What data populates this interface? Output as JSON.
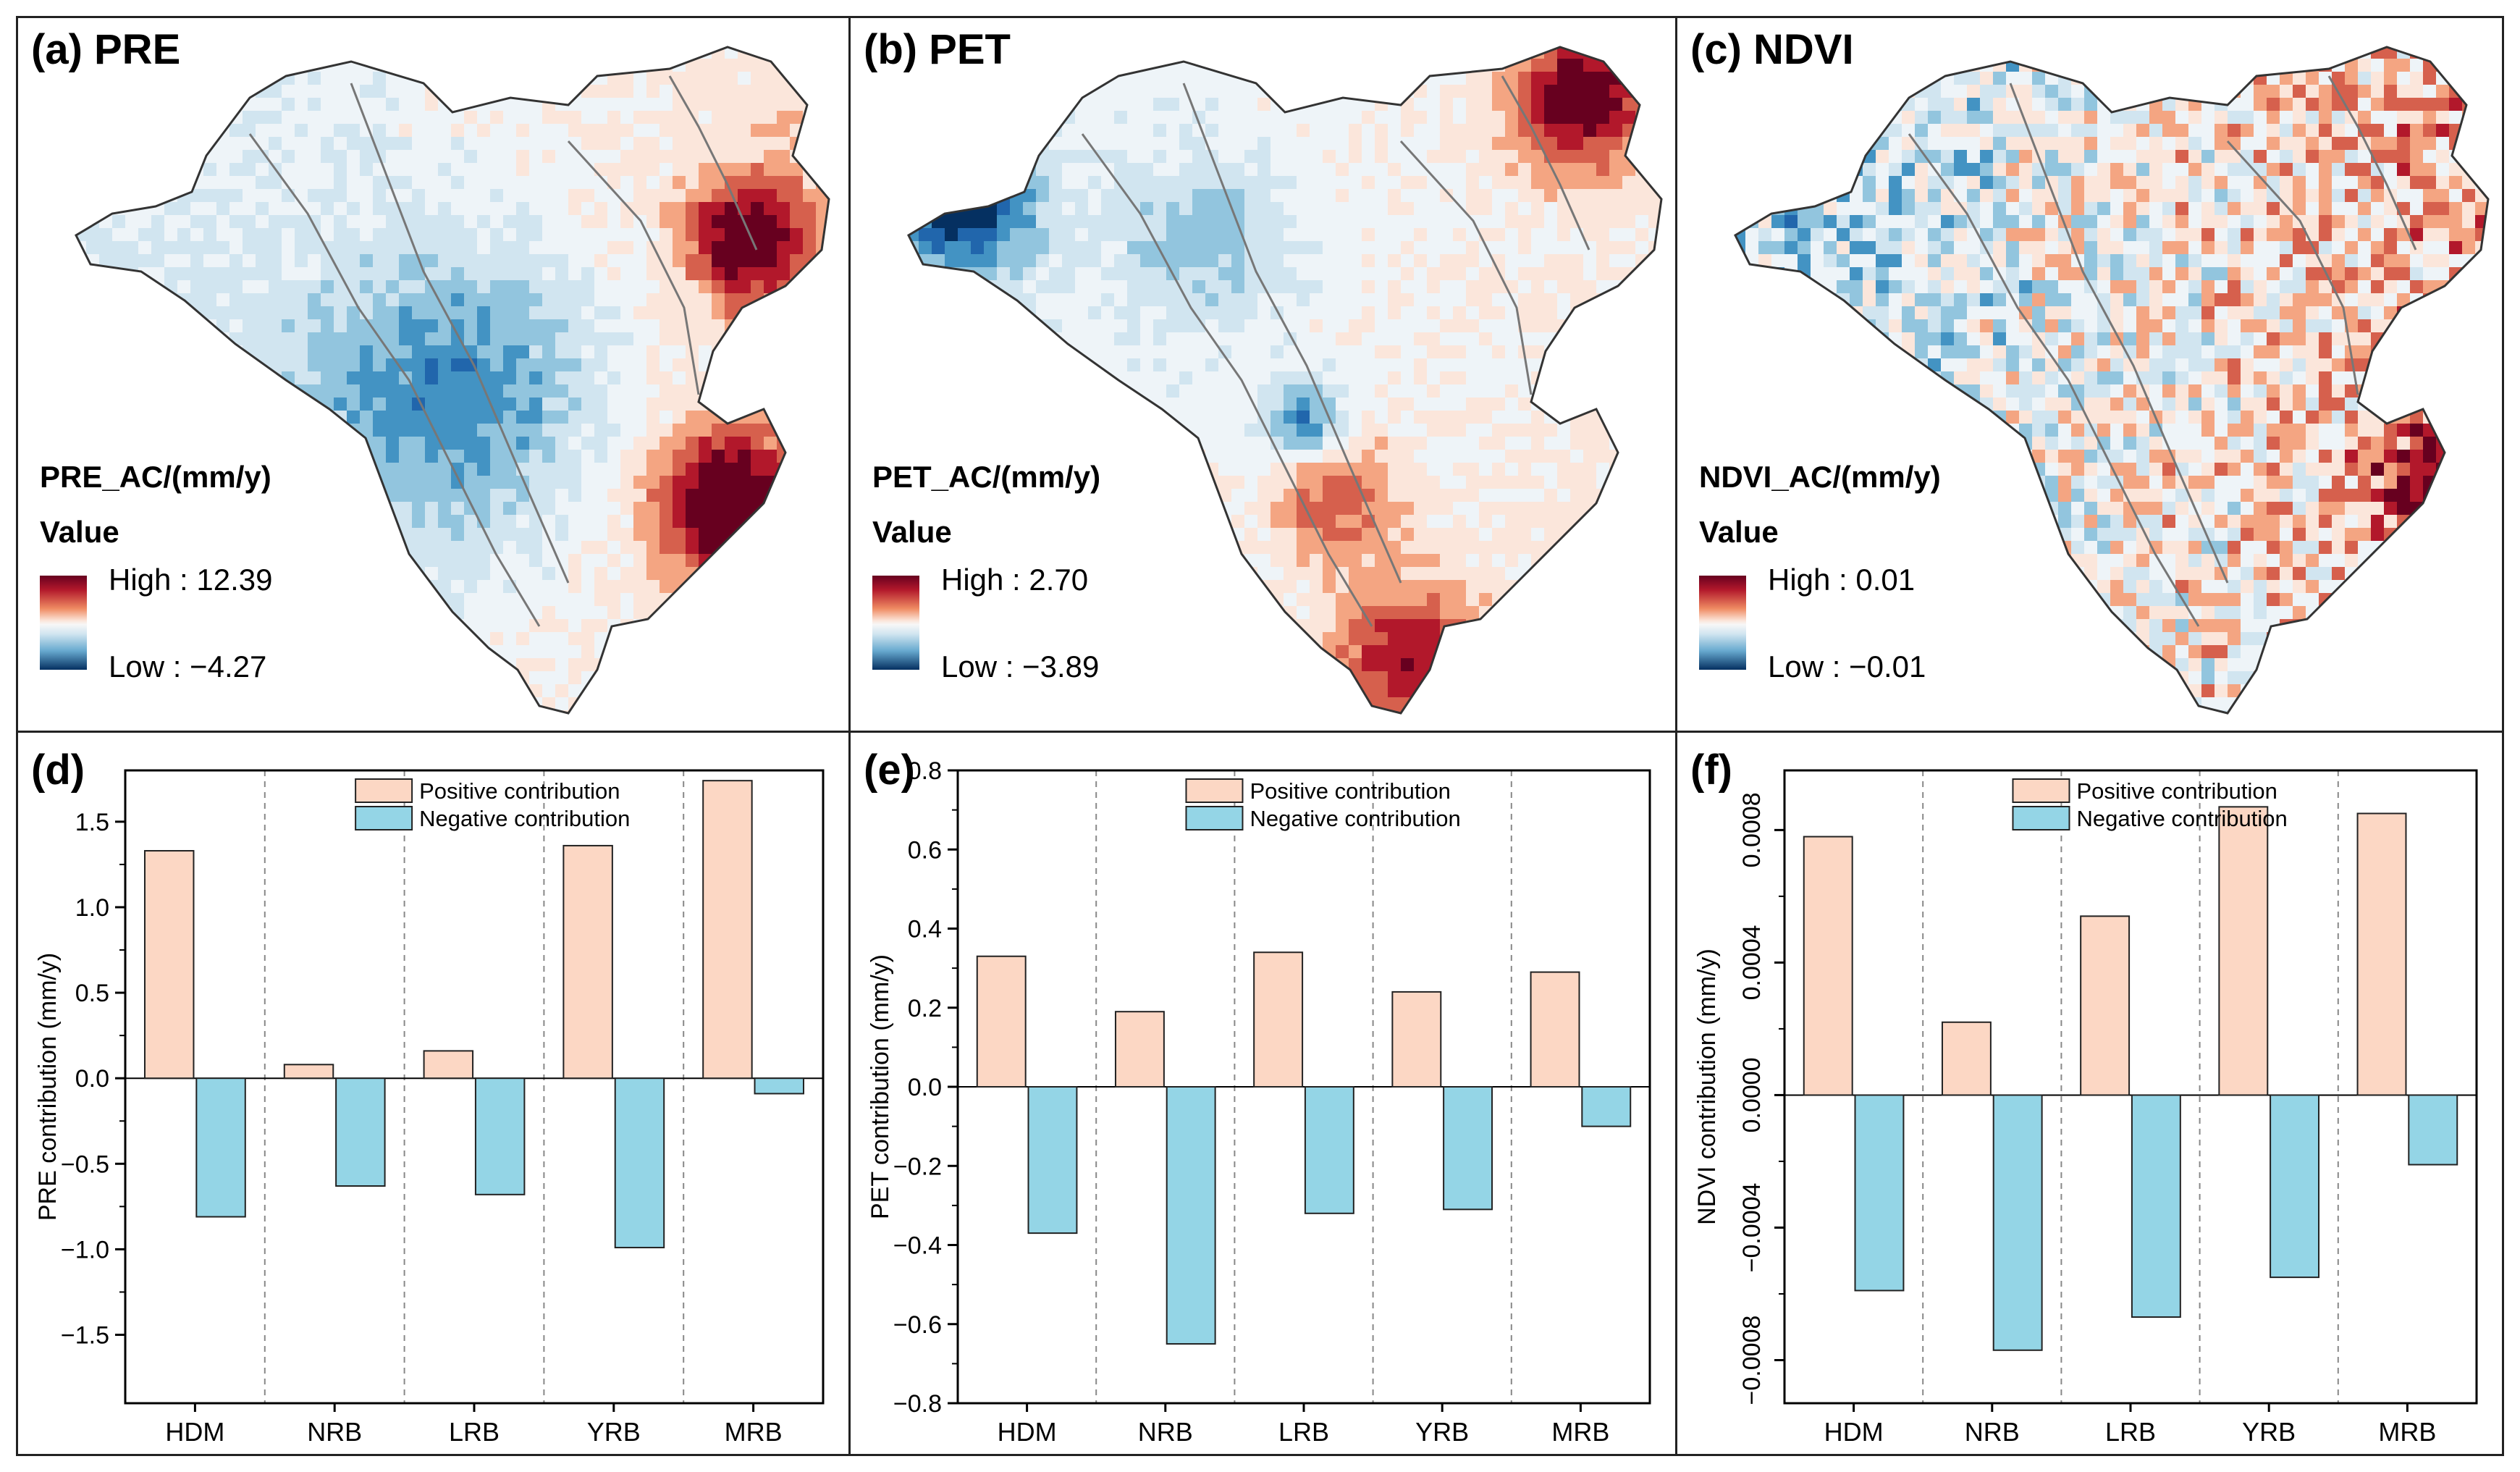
{
  "maps": [
    {
      "title": "(a) PRE",
      "legend_title": "PRE_AC/(mm/y)",
      "value_label": "Value",
      "high_label": "High : 12.39",
      "low_label": "Low : −4.27"
    },
    {
      "title": "(b) PET",
      "legend_title": "PET_AC/(mm/y)",
      "value_label": "Value",
      "high_label": "High : 2.70",
      "low_label": "Low : −3.89"
    },
    {
      "title": "(c) NDVI",
      "legend_title": "NDVI_AC/(mm/y)",
      "value_label": "Value",
      "high_label": "High : 0.01",
      "low_label": "Low : −0.01"
    }
  ],
  "colors": {
    "positive": "#fcd7c4",
    "negative": "#94d5e6",
    "axis": "#000000"
  },
  "chart_data": [
    {
      "panel": "(d)",
      "type": "bar",
      "categories": [
        "HDM",
        "NRB",
        "LRB",
        "YRB",
        "MRB"
      ],
      "series": [
        {
          "name": "Positive contribution",
          "values": [
            1.33,
            0.08,
            0.16,
            1.36,
            1.74
          ]
        },
        {
          "name": "Negative contribution",
          "values": [
            -0.81,
            -0.63,
            -0.68,
            -0.99,
            -0.09
          ]
        }
      ],
      "ylabel": "PRE contribution (mm/y)",
      "ylim": [
        -1.9,
        1.8
      ],
      "yticks": [
        1.5,
        1.0,
        0.5,
        0.0,
        -0.5,
        -1.0,
        -1.5
      ],
      "ytick_labels": [
        "1.5",
        "1.0",
        "0.5",
        "0.0",
        "−0.5",
        "−1.0",
        "−1.5"
      ],
      "legend": "top-center"
    },
    {
      "panel": "(e)",
      "type": "bar",
      "categories": [
        "HDM",
        "NRB",
        "LRB",
        "YRB",
        "MRB"
      ],
      "series": [
        {
          "name": "Positive contribution",
          "values": [
            0.33,
            0.19,
            0.34,
            0.24,
            0.29
          ]
        },
        {
          "name": "Negative contribution",
          "values": [
            -0.37,
            -0.65,
            -0.32,
            -0.31,
            -0.1
          ]
        }
      ],
      "ylabel": "PET contribution (mm/y)",
      "ylim": [
        -0.8,
        0.8
      ],
      "yticks": [
        0.8,
        0.6,
        0.4,
        0.2,
        0.0,
        -0.2,
        -0.4,
        -0.6,
        -0.8
      ],
      "ytick_labels": [
        "0.8",
        "0.6",
        "0.4",
        "0.2",
        "0.0",
        "−0.2",
        "−0.4",
        "−0.6",
        "−0.8"
      ],
      "legend": "top-center"
    },
    {
      "panel": "(f)",
      "type": "bar",
      "categories": [
        "HDM",
        "NRB",
        "LRB",
        "YRB",
        "MRB"
      ],
      "series": [
        {
          "name": "Positive contribution",
          "values": [
            0.00078,
            0.00022,
            0.00054,
            0.00087,
            0.00085
          ]
        },
        {
          "name": "Negative contribution",
          "values": [
            -0.00059,
            -0.00077,
            -0.00067,
            -0.00055,
            -0.00021
          ]
        }
      ],
      "ylabel": "NDVI contribution (mm/y)",
      "ylim": [
        -0.00093,
        0.00098
      ],
      "yticks": [
        0.0008,
        0.0004,
        0.0,
        -0.0004,
        -0.0008
      ],
      "ytick_labels": [
        "0.0008",
        "0.0004",
        "0.0000",
        "−0.0004",
        "−0.0008"
      ],
      "legend": "top-center"
    }
  ]
}
